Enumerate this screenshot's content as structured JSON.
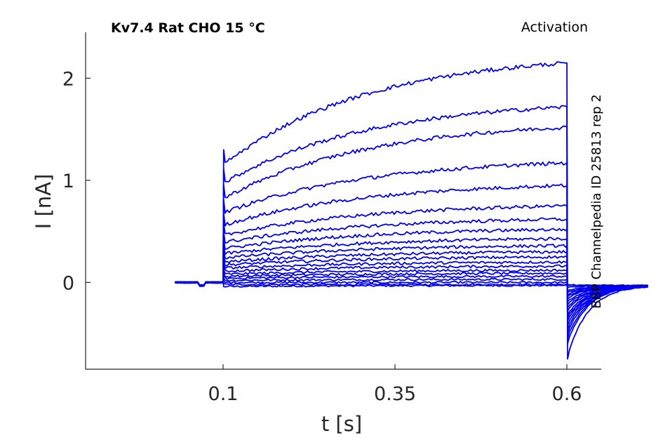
{
  "chart_data": {
    "type": "line",
    "title_left": "Kv7.4  Rat  CHO  15 °C",
    "title_right": "Activation",
    "side_label": "BBP Channelpedia ID 25813 rep 2",
    "xlabel": "t [s]",
    "ylabel": "I [nA]",
    "xlim": [
      -0.1,
      0.65
    ],
    "ylim": [
      -0.85,
      2.45
    ],
    "xticks": [
      0.1,
      0.35,
      0.6
    ],
    "xtick_labels": [
      "0.1",
      "0.35",
      "0.6"
    ],
    "yticks": [
      0,
      1,
      2
    ],
    "ytick_labels": [
      "0",
      "1",
      "2"
    ],
    "grid": false,
    "line_color": "#0000ee",
    "step_on": 0.1,
    "step_off": 0.6,
    "x_start": 0.03,
    "x_end": 0.72,
    "series": [
      {
        "initial": -0.04,
        "final": -0.03,
        "tail_peak": -0.02
      },
      {
        "initial": -0.02,
        "final": -0.02,
        "tail_peak": -0.03
      },
      {
        "initial": 0.0,
        "final": 0.0,
        "tail_peak": -0.05
      },
      {
        "initial": 0.02,
        "final": 0.03,
        "tail_peak": -0.08
      },
      {
        "initial": 0.04,
        "final": 0.06,
        "tail_peak": -0.1
      },
      {
        "initial": 0.06,
        "final": 0.09,
        "tail_peak": -0.12
      },
      {
        "initial": 0.08,
        "final": 0.12,
        "tail_peak": -0.14
      },
      {
        "initial": 0.11,
        "final": 0.16,
        "tail_peak": -0.16
      },
      {
        "initial": 0.14,
        "final": 0.2,
        "tail_peak": -0.19
      },
      {
        "initial": 0.17,
        "final": 0.25,
        "tail_peak": -0.22
      },
      {
        "initial": 0.2,
        "final": 0.3,
        "tail_peak": -0.25
      },
      {
        "initial": 0.24,
        "final": 0.36,
        "tail_peak": -0.28
      },
      {
        "initial": 0.28,
        "final": 0.43,
        "tail_peak": -0.32
      },
      {
        "initial": 0.33,
        "final": 0.52,
        "tail_peak": -0.35
      },
      {
        "initial": 0.39,
        "final": 0.62,
        "tail_peak": -0.38
      },
      {
        "initial": 0.46,
        "final": 0.75,
        "tail_peak": -0.42
      },
      {
        "initial": 0.56,
        "final": 0.95,
        "tail_peak": -0.46
      },
      {
        "initial": 0.68,
        "final": 1.17,
        "tail_peak": -0.5
      },
      {
        "initial": 0.82,
        "final": 1.52,
        "tail_peak": -0.55
      },
      {
        "initial": 0.97,
        "final": 1.72,
        "tail_peak": -0.6
      },
      {
        "initial": 1.15,
        "final": 2.15,
        "tail_peak": -0.75
      }
    ]
  }
}
